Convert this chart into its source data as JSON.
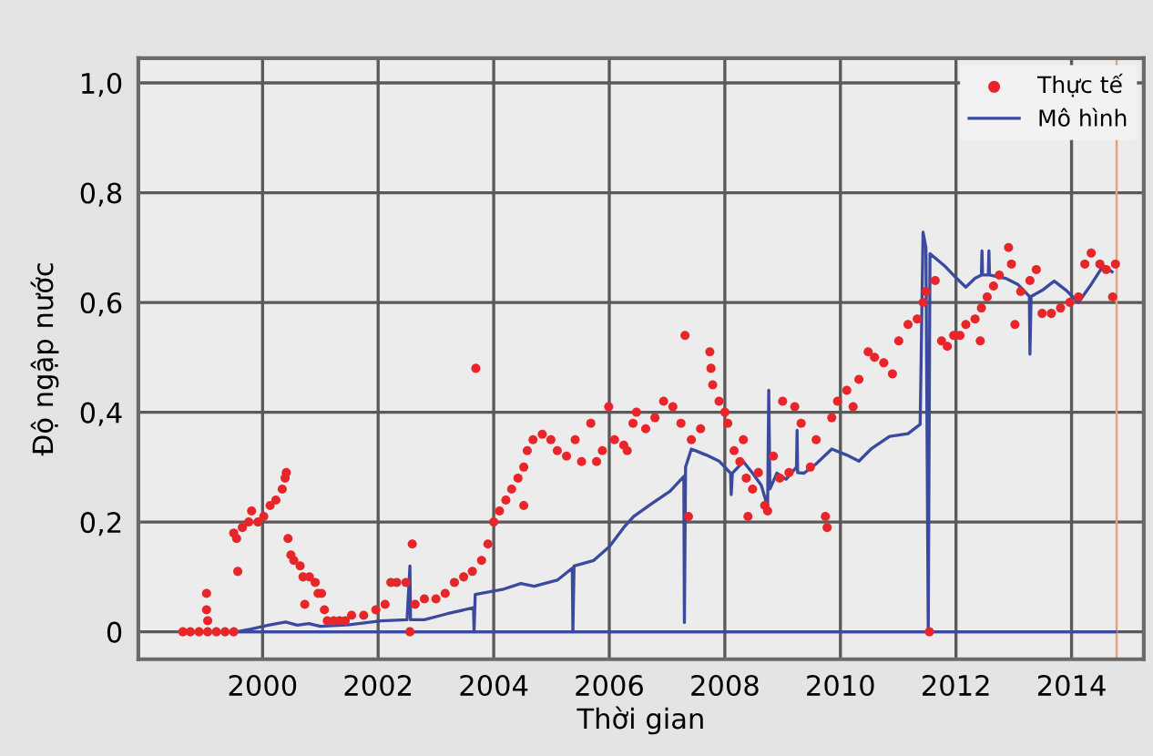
{
  "chart_data": {
    "type": "line",
    "xlabel": "Thời gian",
    "ylabel": "Độ ngập nước",
    "xlim": [
      1997.85,
      2015.25
    ],
    "ylim": [
      -0.05,
      1.045
    ],
    "xticks": [
      2000,
      2002,
      2004,
      2006,
      2008,
      2010,
      2012,
      2014
    ],
    "yticks": [
      0,
      {
        "value": 0.2,
        "label": "0,2"
      },
      {
        "value": 0.4,
        "label": "0,4"
      },
      {
        "value": 0.6,
        "label": "0,6"
      },
      {
        "value": 0.8,
        "label": "0,8"
      },
      {
        "value": 1.0,
        "label": "1,0"
      }
    ],
    "grid": true,
    "legend": "top right",
    "ref_lines": [
      {
        "axis": "x",
        "value": 2014.78,
        "color": "#e8a27a"
      }
    ],
    "series": [
      {
        "name": "Thực tế",
        "type": "scatter",
        "marker": "circle",
        "color": "#e8262a",
        "x": [
          1998.62,
          1998.75,
          1998.9,
          1999.05,
          1999.2,
          1999.35,
          1999.5,
          1999.03,
          1999.03,
          1999.05,
          1999.57,
          1999.5,
          1999.55,
          1999.65,
          1999.76,
          1999.81,
          1999.92,
          2000.02,
          2000.13,
          2000.23,
          2000.34,
          2000.39,
          2000.41,
          2000.44,
          2000.49,
          2000.54,
          2000.65,
          2000.7,
          2000.73,
          2000.81,
          2000.91,
          2000.96,
          2001.02,
          2001.07,
          2001.12,
          2001.23,
          2001.33,
          2001.43,
          2001.54,
          2001.75,
          2001.96,
          2002.12,
          2002.22,
          2002.32,
          2002.48,
          2002.59,
          2002.55,
          2002.64,
          2002.8,
          2003.0,
          2003.16,
          2003.32,
          2003.48,
          2003.63,
          2003.69,
          2003.79,
          2003.9,
          2004.0,
          2004.1,
          2004.21,
          2004.31,
          2004.42,
          2004.52,
          2004.52,
          2004.58,
          2004.68,
          2004.84,
          2004.99,
          2005.1,
          2005.26,
          2005.41,
          2005.52,
          2005.68,
          2005.78,
          2005.88,
          2005.99,
          2006.09,
          2006.25,
          2006.41,
          2006.31,
          2006.47,
          2006.63,
          2006.79,
          2006.94,
          2007.1,
          2007.24,
          2007.31,
          2007.37,
          2007.42,
          2007.58,
          2007.74,
          2007.76,
          2007.79,
          2007.9,
          2008.0,
          2008.05,
          2008.16,
          2008.26,
          2008.32,
          2008.37,
          2008.4,
          2008.48,
          2008.58,
          2008.69,
          2008.74,
          2008.84,
          2008.95,
          2009.0,
          2009.11,
          2009.21,
          2009.32,
          2009.48,
          2009.58,
          2009.74,
          2009.77,
          2009.85,
          2009.95,
          2010.11,
          2010.22,
          2010.32,
          2010.48,
          2010.59,
          2010.75,
          2010.9,
          2011.01,
          2011.17,
          2011.33,
          2011.43,
          2011.48,
          2011.54,
          2011.64,
          2011.75,
          2011.85,
          2011.96,
          2012.07,
          2012.17,
          2012.33,
          2012.44,
          2012.42,
          2012.54,
          2012.65,
          2012.75,
          2012.91,
          2012.96,
          2013.02,
          2013.12,
          2013.28,
          2013.39,
          2013.49,
          2013.65,
          2013.81,
          2013.97,
          2014.12,
          2014.23,
          2014.34,
          2014.49,
          2014.6,
          2014.71,
          2014.76
        ],
        "values": [
          0,
          0,
          0,
          0,
          0,
          0,
          0,
          0.07,
          0.04,
          0.02,
          0.11,
          0.18,
          0.17,
          0.19,
          0.2,
          0.22,
          0.2,
          0.21,
          0.23,
          0.24,
          0.26,
          0.28,
          0.29,
          0.17,
          0.14,
          0.13,
          0.12,
          0.1,
          0.05,
          0.1,
          0.09,
          0.07,
          0.07,
          0.04,
          0.02,
          0.02,
          0.02,
          0.02,
          0.03,
          0.03,
          0.04,
          0.05,
          0.09,
          0.09,
          0.09,
          0.16,
          0,
          0.05,
          0.06,
          0.06,
          0.07,
          0.09,
          0.1,
          0.11,
          0.48,
          0.13,
          0.16,
          0.2,
          0.22,
          0.24,
          0.26,
          0.28,
          0.3,
          0.23,
          0.33,
          0.35,
          0.36,
          0.35,
          0.33,
          0.32,
          0.35,
          0.31,
          0.38,
          0.31,
          0.33,
          0.41,
          0.35,
          0.34,
          0.38,
          0.33,
          0.4,
          0.37,
          0.39,
          0.42,
          0.41,
          0.38,
          0.54,
          0.21,
          0.35,
          0.37,
          0.51,
          0.48,
          0.45,
          0.42,
          0.4,
          0.38,
          0.33,
          0.31,
          0.35,
          0.28,
          0.21,
          0.26,
          0.29,
          0.23,
          0.22,
          0.32,
          0.28,
          0.42,
          0.29,
          0.41,
          0.38,
          0.3,
          0.35,
          0.21,
          0.19,
          0.39,
          0.42,
          0.44,
          0.41,
          0.46,
          0.51,
          0.5,
          0.49,
          0.47,
          0.53,
          0.56,
          0.57,
          0.6,
          0.62,
          0,
          0.64,
          0.53,
          0.52,
          0.54,
          0.54,
          0.56,
          0.57,
          0.59,
          0.53,
          0.61,
          0.63,
          0.65,
          0.7,
          0.67,
          0.56,
          0.62,
          0.64,
          0.66,
          0.58,
          0.58,
          0.59,
          0.6,
          0.61,
          0.67,
          0.69,
          0.67,
          0.66,
          0.61,
          0.67
        ]
      },
      {
        "name": "Mô hình",
        "color": "#3b4a9e",
        "x": [
          1999.55,
          1999.8,
          2000.1,
          2000.4,
          2000.6,
          2000.8,
          2001.0,
          2001.5,
          2002.05,
          2002.5,
          2002.55,
          2002.56,
          2002.8,
          2003.2,
          2003.65,
          2003.66,
          2003.68,
          2004.15,
          2004.47,
          2004.7,
          2005.1,
          2005.36,
          2005.37,
          2005.39,
          2005.73,
          2006.0,
          2006.25,
          2006.42,
          2006.73,
          2007.05,
          2007.29,
          2007.3,
          2007.32,
          2007.42,
          2007.68,
          2007.9,
          2008.1,
          2008.11,
          2008.13,
          2008.32,
          2008.48,
          2008.63,
          2008.74,
          2008.76,
          2008.78,
          2008.9,
          2009.06,
          2009.24,
          2009.25,
          2009.26,
          2009.37,
          2009.58,
          2009.85,
          2010.11,
          2010.32,
          2010.53,
          2010.85,
          2011.17,
          2011.38,
          2011.43,
          2011.48,
          2011.52,
          2011.55,
          2011.8,
          2012.01,
          2012.17,
          2012.33,
          2012.44,
          2012.45,
          2012.46,
          2012.56,
          2012.57,
          2012.58,
          2012.86,
          2013.07,
          2013.27,
          2013.28,
          2013.3,
          2013.49,
          2013.7,
          2013.91,
          2014.12,
          2014.34,
          2014.55,
          2014.7
        ],
        "values": [
          0,
          0.005,
          0.012,
          0.018,
          0.012,
          0.015,
          0.01,
          0.013,
          0.02,
          0.022,
          0.12,
          0.022,
          0.022,
          0.033,
          0.044,
          0,
          0.068,
          0.077,
          0.088,
          0.083,
          0.094,
          0.116,
          0,
          0.12,
          0.13,
          0.155,
          0.19,
          0.21,
          0.233,
          0.256,
          0.283,
          0.017,
          0.3,
          0.333,
          0.322,
          0.311,
          0.289,
          0.25,
          0.289,
          0.31,
          0.289,
          0.267,
          0.228,
          0.44,
          0.26,
          0.289,
          0.278,
          0.3,
          0.367,
          0.29,
          0.289,
          0.306,
          0.333,
          0.322,
          0.311,
          0.333,
          0.356,
          0.361,
          0.378,
          0.728,
          0.7,
          0,
          0.689,
          0.667,
          0.644,
          0.628,
          0.644,
          0.65,
          0.694,
          0.65,
          0.65,
          0.694,
          0.65,
          0.644,
          0.633,
          0.611,
          0.506,
          0.611,
          0.622,
          0.639,
          0.622,
          0.6,
          0.633,
          0.667,
          0.656
        ]
      },
      {
        "color": "#3b4a9e",
        "x": [
          1999.55,
          2014.76
        ],
        "values": [
          0,
          0
        ]
      }
    ]
  }
}
